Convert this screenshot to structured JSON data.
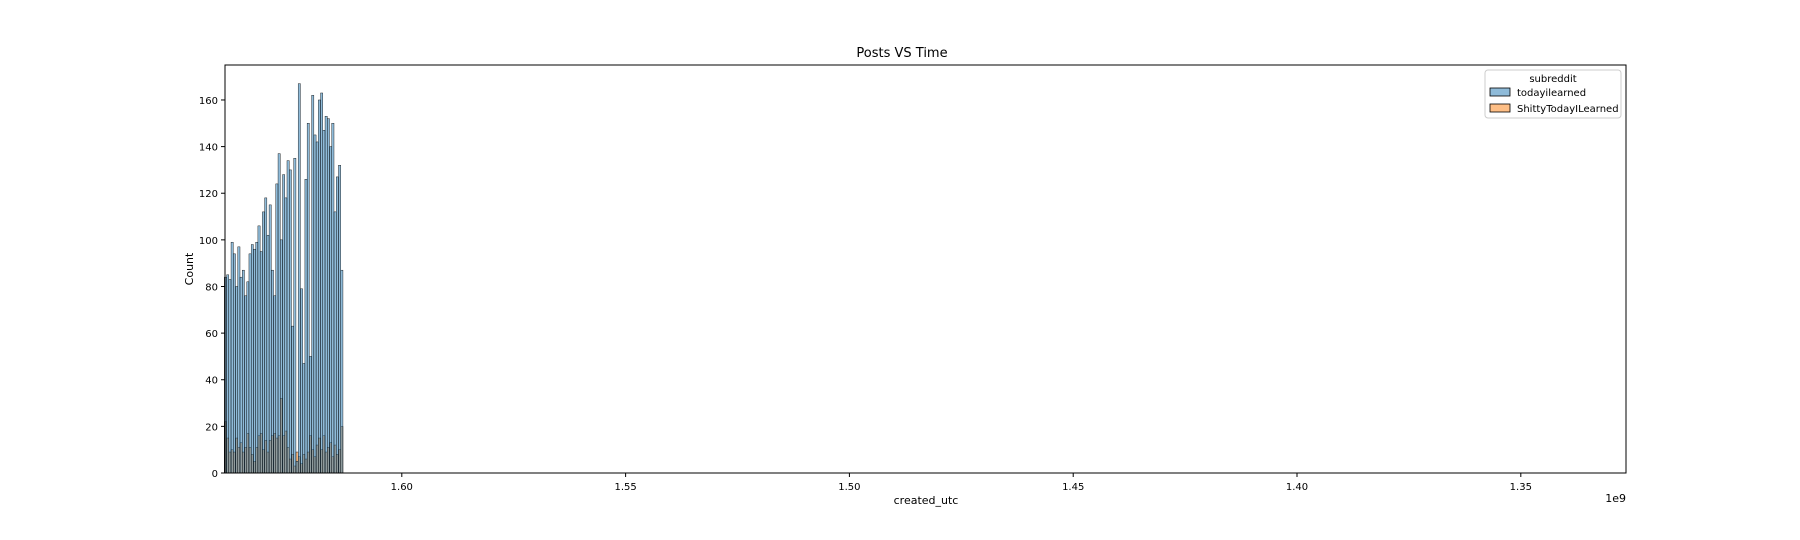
{
  "chart_data": {
    "type": "histogram",
    "title": "Posts VS Time",
    "xlabel": "created_utc",
    "ylabel": "Count",
    "x_offset_text": "1e9",
    "x_axis_inverted": true,
    "xlim": [
      1.6395,
      1.3265
    ],
    "ylim": [
      0,
      175
    ],
    "x_ticks": [
      {
        "value": 1.6,
        "label": "1.60"
      },
      {
        "value": 1.55,
        "label": "1.55"
      },
      {
        "value": 1.5,
        "label": "1.50"
      },
      {
        "value": 1.45,
        "label": "1.45"
      },
      {
        "value": 1.4,
        "label": "1.40"
      },
      {
        "value": 1.35,
        "label": "1.35"
      }
    ],
    "y_ticks": [
      {
        "value": 0,
        "label": "0"
      },
      {
        "value": 20,
        "label": "20"
      },
      {
        "value": 40,
        "label": "40"
      },
      {
        "value": 60,
        "label": "60"
      },
      {
        "value": 80,
        "label": "80"
      },
      {
        "value": 100,
        "label": "100"
      },
      {
        "value": 120,
        "label": "120"
      },
      {
        "value": 140,
        "label": "140"
      },
      {
        "value": 160,
        "label": "160"
      }
    ],
    "legend": {
      "title": "subreddit",
      "placement": "upper right"
    },
    "grid": false,
    "series": [
      {
        "name": "todayilearned",
        "color": "#1f77b4",
        "bins": [
          {
            "x": 1.6394,
            "y": 84
          },
          {
            "x": 1.6389,
            "y": 85
          },
          {
            "x": 1.6384,
            "y": 83
          },
          {
            "x": 1.6379,
            "y": 99
          },
          {
            "x": 1.6374,
            "y": 94
          },
          {
            "x": 1.6369,
            "y": 80
          },
          {
            "x": 1.6364,
            "y": 97
          },
          {
            "x": 1.6359,
            "y": 84
          },
          {
            "x": 1.6354,
            "y": 87
          },
          {
            "x": 1.6349,
            "y": 76
          },
          {
            "x": 1.6344,
            "y": 82
          },
          {
            "x": 1.6339,
            "y": 94
          },
          {
            "x": 1.6334,
            "y": 98
          },
          {
            "x": 1.6329,
            "y": 96
          },
          {
            "x": 1.6324,
            "y": 99
          },
          {
            "x": 1.6319,
            "y": 106
          },
          {
            "x": 1.6314,
            "y": 95
          },
          {
            "x": 1.6309,
            "y": 112
          },
          {
            "x": 1.6304,
            "y": 118
          },
          {
            "x": 1.6299,
            "y": 102
          },
          {
            "x": 1.6294,
            "y": 115
          },
          {
            "x": 1.6289,
            "y": 87
          },
          {
            "x": 1.6284,
            "y": 76
          },
          {
            "x": 1.6279,
            "y": 124
          },
          {
            "x": 1.6274,
            "y": 137
          },
          {
            "x": 1.6269,
            "y": 100
          },
          {
            "x": 1.6264,
            "y": 128
          },
          {
            "x": 1.6259,
            "y": 118
          },
          {
            "x": 1.6254,
            "y": 134
          },
          {
            "x": 1.6249,
            "y": 130
          },
          {
            "x": 1.6244,
            "y": 63
          },
          {
            "x": 1.6239,
            "y": 135
          },
          {
            "x": 1.6234,
            "y": 5
          },
          {
            "x": 1.6229,
            "y": 167
          },
          {
            "x": 1.6224,
            "y": 79
          },
          {
            "x": 1.6219,
            "y": 47
          },
          {
            "x": 1.6214,
            "y": 126
          },
          {
            "x": 1.6209,
            "y": 150
          },
          {
            "x": 1.6204,
            "y": 50
          },
          {
            "x": 1.6199,
            "y": 162
          },
          {
            "x": 1.6194,
            "y": 145
          },
          {
            "x": 1.6189,
            "y": 142
          },
          {
            "x": 1.6184,
            "y": 160
          },
          {
            "x": 1.6179,
            "y": 163
          },
          {
            "x": 1.6174,
            "y": 147
          },
          {
            "x": 1.6169,
            "y": 153
          },
          {
            "x": 1.6164,
            "y": 152
          },
          {
            "x": 1.6159,
            "y": 140
          },
          {
            "x": 1.6154,
            "y": 150
          },
          {
            "x": 1.6149,
            "y": 112
          },
          {
            "x": 1.6144,
            "y": 127
          },
          {
            "x": 1.6139,
            "y": 132
          },
          {
            "x": 1.6134,
            "y": 87
          }
        ]
      },
      {
        "name": "ShittyTodayILearned",
        "color": "#ff7f0e",
        "bins": [
          {
            "x": 1.6394,
            "y": 22
          },
          {
            "x": 1.6389,
            "y": 15
          },
          {
            "x": 1.6384,
            "y": 9
          },
          {
            "x": 1.6379,
            "y": 10
          },
          {
            "x": 1.6374,
            "y": 9
          },
          {
            "x": 1.6369,
            "y": 15
          },
          {
            "x": 1.6364,
            "y": 11
          },
          {
            "x": 1.6359,
            "y": 13
          },
          {
            "x": 1.6354,
            "y": 9
          },
          {
            "x": 1.6349,
            "y": 11
          },
          {
            "x": 1.6344,
            "y": 17
          },
          {
            "x": 1.6339,
            "y": 11
          },
          {
            "x": 1.6334,
            "y": 8
          },
          {
            "x": 1.6329,
            "y": 5
          },
          {
            "x": 1.6324,
            "y": 11
          },
          {
            "x": 1.6319,
            "y": 16
          },
          {
            "x": 1.6314,
            "y": 17
          },
          {
            "x": 1.6309,
            "y": 10
          },
          {
            "x": 1.6304,
            "y": 14
          },
          {
            "x": 1.6299,
            "y": 9
          },
          {
            "x": 1.6294,
            "y": 14
          },
          {
            "x": 1.6289,
            "y": 16
          },
          {
            "x": 1.6284,
            "y": 17
          },
          {
            "x": 1.6279,
            "y": 15
          },
          {
            "x": 1.6274,
            "y": 16
          },
          {
            "x": 1.6269,
            "y": 32
          },
          {
            "x": 1.6264,
            "y": 16
          },
          {
            "x": 1.6259,
            "y": 18
          },
          {
            "x": 1.6254,
            "y": 11
          },
          {
            "x": 1.6249,
            "y": 6
          },
          {
            "x": 1.6244,
            "y": 8
          },
          {
            "x": 1.6239,
            "y": 3
          },
          {
            "x": 1.6234,
            "y": 9
          },
          {
            "x": 1.6229,
            "y": 7
          },
          {
            "x": 1.6224,
            "y": 4
          },
          {
            "x": 1.6219,
            "y": 8
          },
          {
            "x": 1.6214,
            "y": 6
          },
          {
            "x": 1.6209,
            "y": 9
          },
          {
            "x": 1.6204,
            "y": 16
          },
          {
            "x": 1.6199,
            "y": 10
          },
          {
            "x": 1.6194,
            "y": 7
          },
          {
            "x": 1.6189,
            "y": 12
          },
          {
            "x": 1.6184,
            "y": 15
          },
          {
            "x": 1.6179,
            "y": 10
          },
          {
            "x": 1.6174,
            "y": 16
          },
          {
            "x": 1.6169,
            "y": 9
          },
          {
            "x": 1.6164,
            "y": 11
          },
          {
            "x": 1.6159,
            "y": 13
          },
          {
            "x": 1.6154,
            "y": 7
          },
          {
            "x": 1.6149,
            "y": 12
          },
          {
            "x": 1.6144,
            "y": 8
          },
          {
            "x": 1.6139,
            "y": 10
          },
          {
            "x": 1.6134,
            "y": 20
          }
        ]
      }
    ]
  }
}
